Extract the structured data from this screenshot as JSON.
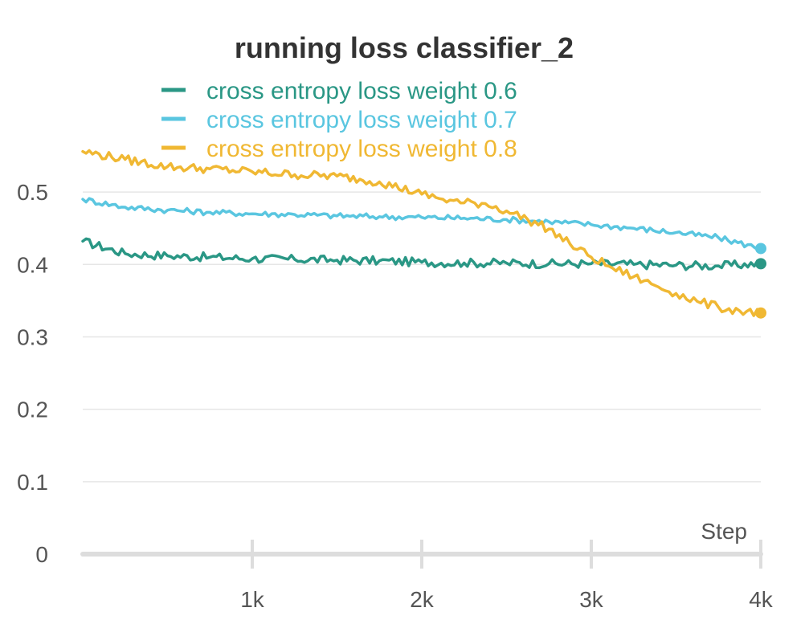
{
  "chart_data": {
    "type": "line",
    "title": "running loss classifier_2",
    "xlabel": "Step",
    "ylabel": "",
    "xlim": [
      0,
      4000
    ],
    "ylim": [
      0,
      0.56
    ],
    "x_ticks": [
      {
        "value": 1000,
        "label": "1k"
      },
      {
        "value": 2000,
        "label": "2k"
      },
      {
        "value": 3000,
        "label": "3k"
      },
      {
        "value": 4000,
        "label": "4k"
      }
    ],
    "y_ticks": [
      {
        "value": 0,
        "label": "0"
      },
      {
        "value": 0.1,
        "label": "0.1"
      },
      {
        "value": 0.2,
        "label": "0.2"
      },
      {
        "value": 0.3,
        "label": "0.3"
      },
      {
        "value": 0.4,
        "label": "0.4"
      },
      {
        "value": 0.5,
        "label": "0.5"
      }
    ],
    "grid": true,
    "legend_position": "top-left",
    "series": [
      {
        "name": "cross entropy loss weight 0.6",
        "color": "#2a9785",
        "x": [
          0,
          250,
          500,
          750,
          1000,
          1250,
          1500,
          1750,
          2000,
          2250,
          2500,
          2750,
          3000,
          3250,
          3500,
          3750,
          4000
        ],
        "values": [
          0.432,
          0.415,
          0.412,
          0.41,
          0.408,
          0.407,
          0.406,
          0.405,
          0.403,
          0.402,
          0.402,
          0.401,
          0.401,
          0.4,
          0.399,
          0.398,
          0.401
        ]
      },
      {
        "name": "cross entropy loss weight 0.7",
        "color": "#5ac6e0",
        "x": [
          0,
          250,
          500,
          750,
          1000,
          1250,
          1500,
          1750,
          2000,
          2250,
          2500,
          2750,
          3000,
          3250,
          3500,
          3750,
          4000
        ],
        "values": [
          0.49,
          0.479,
          0.475,
          0.472,
          0.47,
          0.469,
          0.467,
          0.466,
          0.465,
          0.464,
          0.462,
          0.459,
          0.455,
          0.45,
          0.444,
          0.437,
          0.422
        ]
      },
      {
        "name": "cross entropy loss weight 0.8",
        "color": "#f0b833",
        "x": [
          0,
          250,
          500,
          750,
          1000,
          1250,
          1500,
          1750,
          2000,
          2125,
          2250,
          2375,
          2500,
          2625,
          2750,
          2875,
          3000,
          3125,
          3250,
          3375,
          3500,
          3625,
          3750,
          3875,
          4000
        ],
        "values": [
          0.556,
          0.545,
          0.535,
          0.532,
          0.528,
          0.524,
          0.522,
          0.514,
          0.497,
          0.49,
          0.485,
          0.484,
          0.474,
          0.462,
          0.449,
          0.428,
          0.41,
          0.395,
          0.383,
          0.371,
          0.36,
          0.349,
          0.341,
          0.336,
          0.333
        ]
      }
    ]
  }
}
